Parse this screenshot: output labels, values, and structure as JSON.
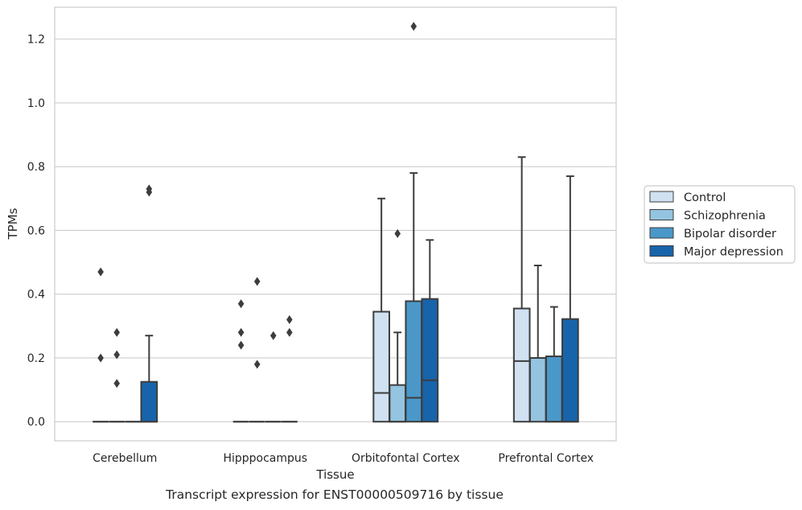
{
  "caption": "Transcript expression for ENST00000509716 by tissue",
  "chart_data": {
    "type": "box",
    "xlabel": "Tissue",
    "ylabel": "TPMs",
    "ylim": [
      -0.06,
      1.3
    ],
    "yticks": [
      0.0,
      0.2,
      0.4,
      0.6,
      0.8,
      1.0,
      1.2
    ],
    "ytick_labels": [
      "0.0",
      "0.2",
      "0.4",
      "0.6",
      "0.8",
      "1.0",
      "1.2"
    ],
    "grid": "horizontal",
    "legend_position": "right",
    "categories": [
      "Cerebellum",
      "Hipppocampus",
      "Orbitofontal Cortex",
      "Prefrontal Cortex"
    ],
    "series": [
      {
        "name": "Control",
        "color": "#d0e1f2",
        "boxes": [
          {
            "q1": 0.0,
            "median": 0.0,
            "q3": 0.0,
            "whisker_low": 0.0,
            "whisker_high": 0.0,
            "outliers": [
              0.47,
              0.2
            ]
          },
          {
            "q1": 0.0,
            "median": 0.0,
            "q3": 0.0,
            "whisker_low": 0.0,
            "whisker_high": 0.0,
            "outliers": [
              0.37,
              0.28,
              0.24
            ]
          },
          {
            "q1": 0.0,
            "median": 0.09,
            "q3": 0.345,
            "whisker_low": 0.0,
            "whisker_high": 0.7,
            "outliers": []
          },
          {
            "q1": 0.0,
            "median": 0.19,
            "q3": 0.355,
            "whisker_low": 0.0,
            "whisker_high": 0.83,
            "outliers": []
          }
        ]
      },
      {
        "name": "Schizophrenia",
        "color": "#94c4df",
        "boxes": [
          {
            "q1": 0.0,
            "median": 0.0,
            "q3": 0.0,
            "whisker_low": 0.0,
            "whisker_high": 0.0,
            "outliers": [
              0.28,
              0.21,
              0.12
            ]
          },
          {
            "q1": 0.0,
            "median": 0.0,
            "q3": 0.0,
            "whisker_low": 0.0,
            "whisker_high": 0.0,
            "outliers": [
              0.44,
              0.18
            ]
          },
          {
            "q1": 0.0,
            "median": 0.0,
            "q3": 0.115,
            "whisker_low": 0.0,
            "whisker_high": 0.28,
            "outliers": [
              0.59
            ]
          },
          {
            "q1": 0.0,
            "median": 0.2,
            "q3": 0.2,
            "whisker_low": 0.0,
            "whisker_high": 0.49,
            "outliers": []
          }
        ]
      },
      {
        "name": "Bipolar disorder",
        "color": "#4a98c9",
        "boxes": [
          {
            "q1": 0.0,
            "median": 0.0,
            "q3": 0.0,
            "whisker_low": 0.0,
            "whisker_high": 0.0,
            "outliers": []
          },
          {
            "q1": 0.0,
            "median": 0.0,
            "q3": 0.0,
            "whisker_low": 0.0,
            "whisker_high": 0.0,
            "outliers": [
              0.27
            ]
          },
          {
            "q1": 0.0,
            "median": 0.075,
            "q3": 0.378,
            "whisker_low": 0.0,
            "whisker_high": 0.78,
            "outliers": [
              1.24
            ]
          },
          {
            "q1": 0.0,
            "median": 0.0,
            "q3": 0.205,
            "whisker_low": 0.0,
            "whisker_high": 0.36,
            "outliers": []
          }
        ]
      },
      {
        "name": "Major depression",
        "color": "#1764ab",
        "boxes": [
          {
            "q1": 0.0,
            "median": 0.0,
            "q3": 0.125,
            "whisker_low": 0.0,
            "whisker_high": 0.27,
            "outliers": [
              0.73,
              0.72
            ]
          },
          {
            "q1": 0.0,
            "median": 0.0,
            "q3": 0.0,
            "whisker_low": 0.0,
            "whisker_high": 0.0,
            "outliers": [
              0.32,
              0.28
            ]
          },
          {
            "q1": 0.0,
            "median": 0.13,
            "q3": 0.385,
            "whisker_low": 0.0,
            "whisker_high": 0.57,
            "outliers": []
          },
          {
            "q1": 0.0,
            "median": 0.0,
            "q3": 0.322,
            "whisker_low": 0.0,
            "whisker_high": 0.77,
            "outliers": []
          }
        ]
      }
    ]
  }
}
